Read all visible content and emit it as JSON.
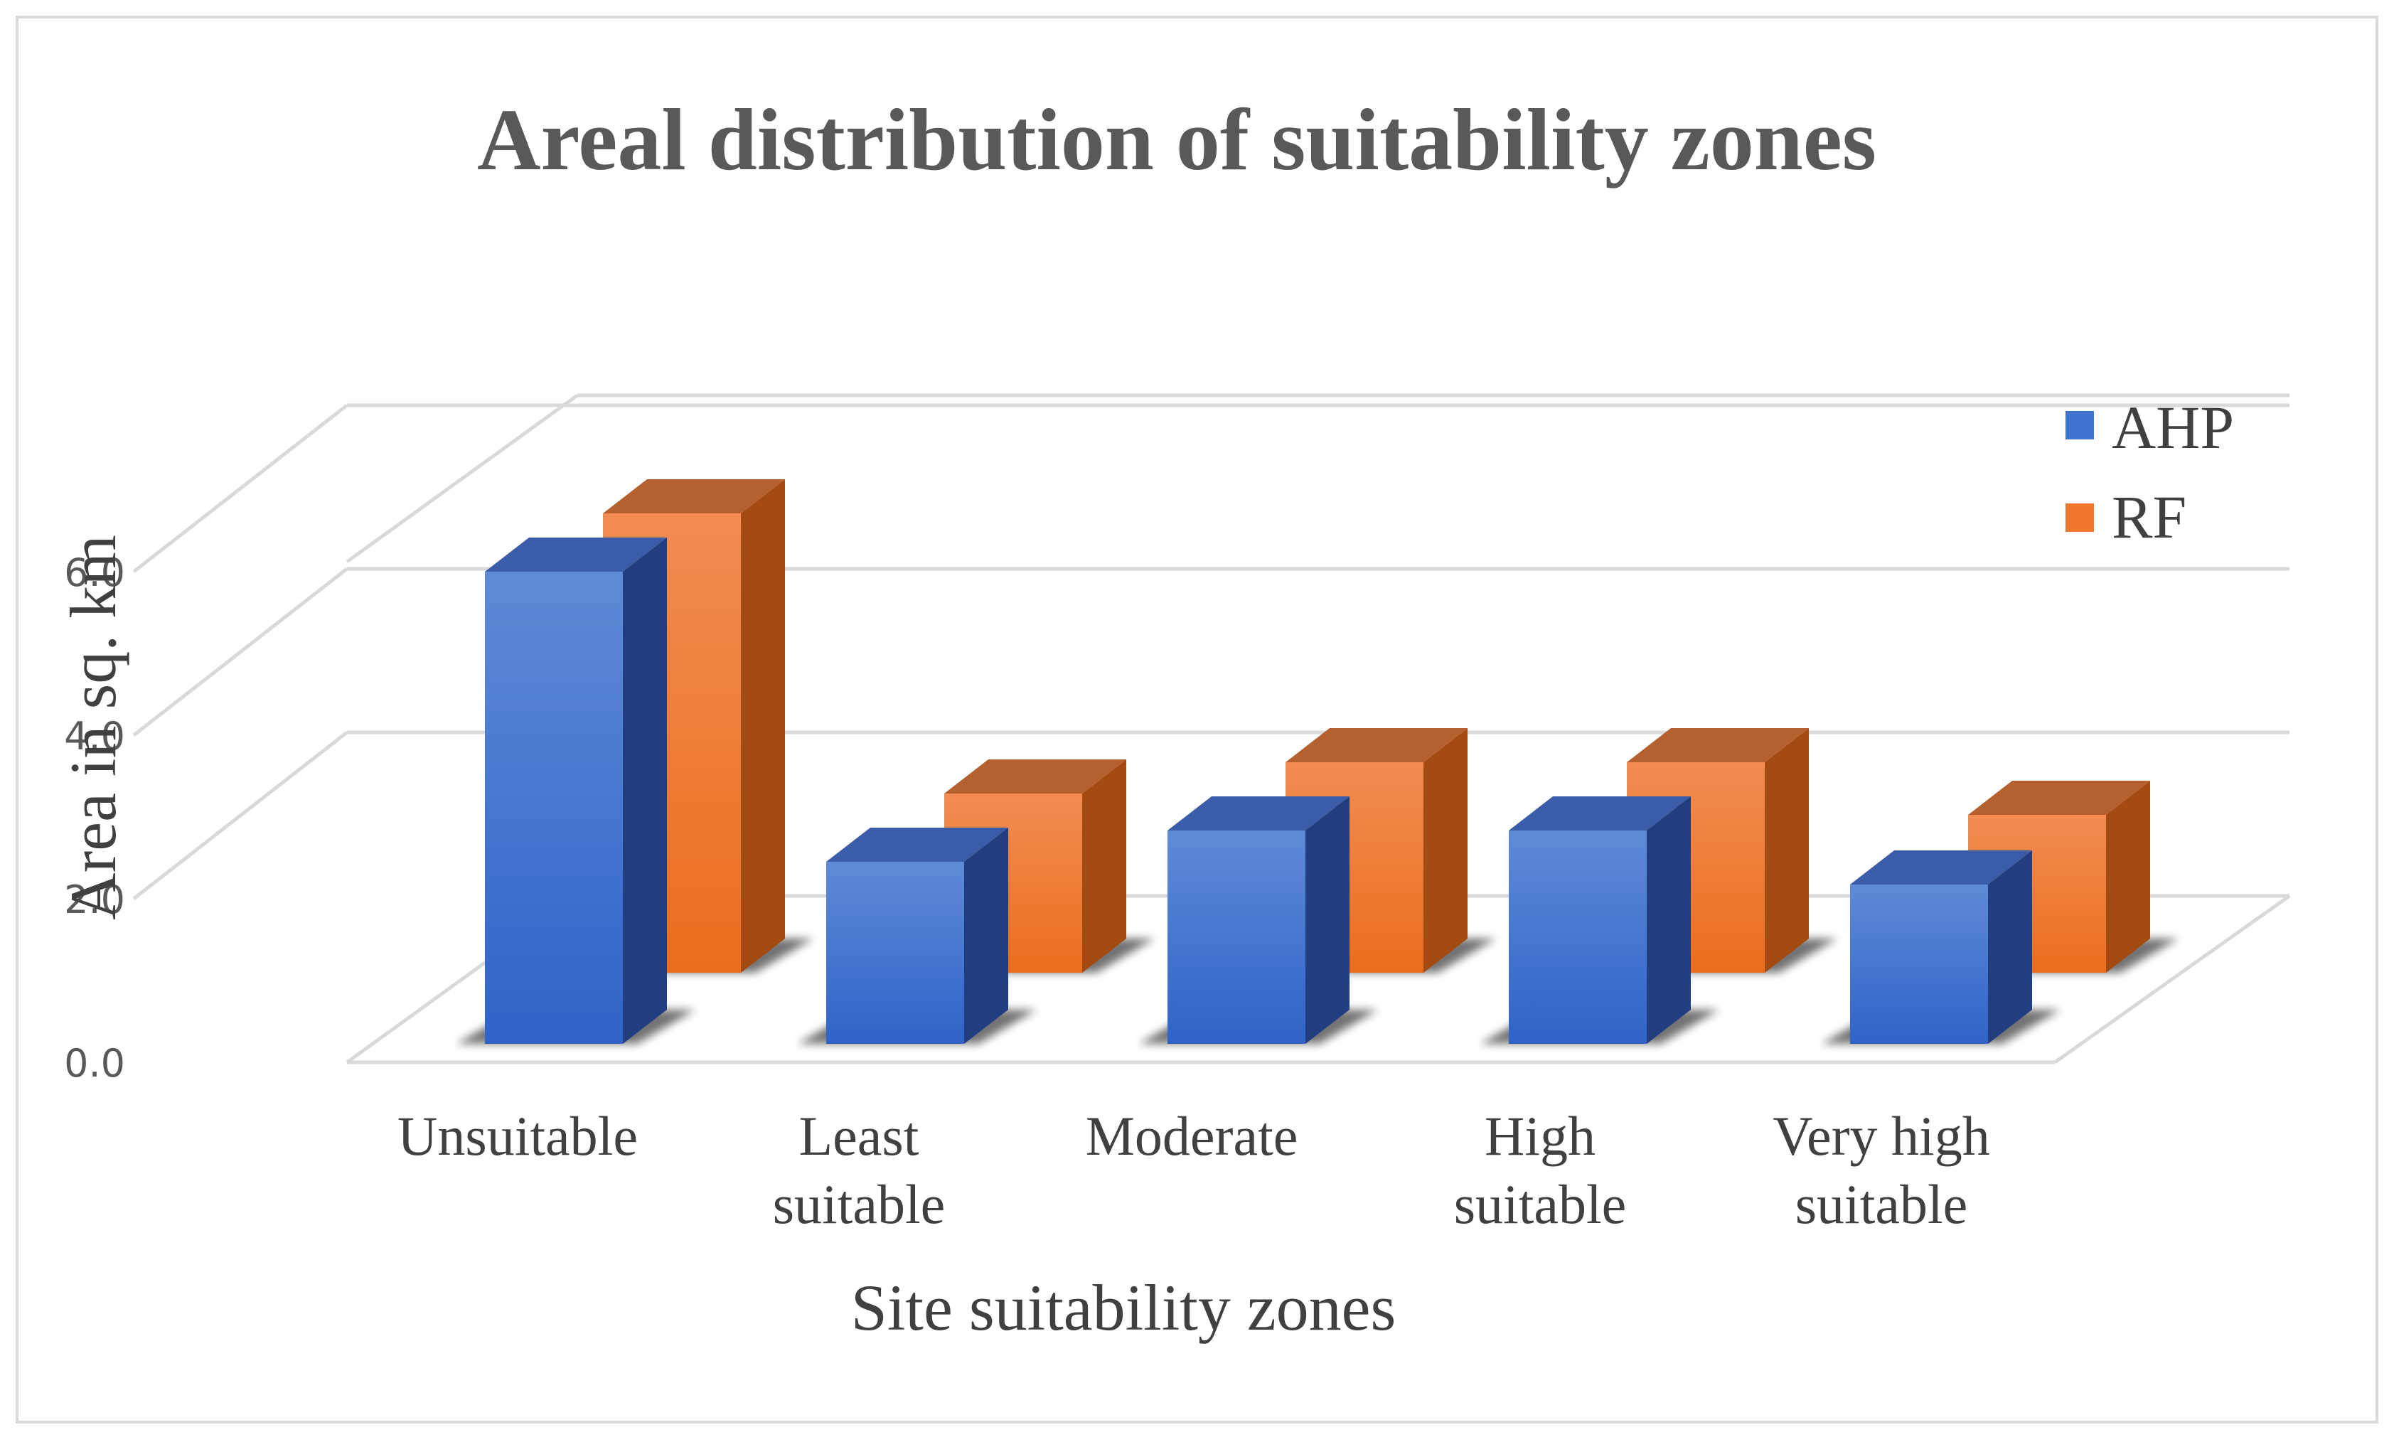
{
  "chart_data": {
    "type": "bar",
    "title": "Areal distribution of suitability zones",
    "xlabel": "Site suitability zones",
    "ylabel": "Area in sq. km",
    "categories": [
      [
        "Unsuitable"
      ],
      [
        "Least",
        "suitable"
      ],
      [
        "Moderate"
      ],
      [
        "High",
        "suitable"
      ],
      [
        "Very high",
        "suitable"
      ]
    ],
    "series": [
      {
        "name": "AHP",
        "values": [
          5.8,
          2.2,
          2.6,
          2.6,
          1.9
        ]
      },
      {
        "name": "RF",
        "values": [
          5.8,
          2.2,
          2.6,
          2.6,
          1.9
        ]
      }
    ],
    "yticks": [
      "0.0",
      "2.0",
      "4.0",
      "6.0"
    ],
    "ylim": [
      0,
      6
    ],
    "grid": true,
    "legend_position": "top-right",
    "colors": {
      "AHP": "#3f74d1",
      "RF": "#f0782d",
      "gridline": "#d9d9d9",
      "title": "#595959"
    }
  }
}
